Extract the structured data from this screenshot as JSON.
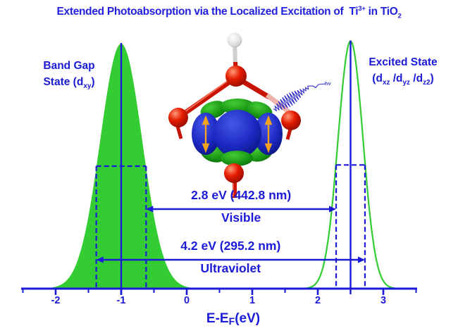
{
  "title": {
    "pre": "Extended Photoabsorption via the Localized Excitation of  Ti",
    "sup": "3+",
    "mid": " in TiO",
    "sub": "2"
  },
  "left_peak_label": {
    "line1": "Band Gap",
    "line2_pre": "State (d",
    "line2_sub": "xy",
    "line2_post": ")"
  },
  "right_peak_label": {
    "line1": "Excited State",
    "p1": "(d",
    "s1": "xz",
    "p2": " /d",
    "s2": "yz",
    "p3": " /d",
    "s3": "z2",
    "p4": ")"
  },
  "annotations": {
    "visible": {
      "value": "2.8 eV (442.8 nm)",
      "band": "Visible"
    },
    "ultraviolet": {
      "value": "4.2 eV (295.2 nm)",
      "band": "Ultraviolet"
    }
  },
  "axis": {
    "label_pre": "E-E",
    "label_sub": "F",
    "label_post": "(eV)",
    "ticks": [
      "-2",
      "-1",
      "0",
      "1",
      "2",
      "3"
    ]
  },
  "photon_label": "hν",
  "colors": {
    "accent_blue": "#1a1ad8",
    "title_blue": "#2121df",
    "green": "#33cc33",
    "atom_red": "#e01800",
    "orbital_blue": "#1a28c0",
    "orbital_green": "#189614",
    "spin_orange": "#f2a21c"
  },
  "chart_data": {
    "type": "area",
    "title": "Extended Photoabsorption via the Localized Excitation of Ti3+ in TiO2",
    "xlabel": "E-EF (eV)",
    "ylabel": "",
    "x_range": [
      -2.5,
      3.5
    ],
    "x_ticks": [
      -2,
      -1,
      0,
      1,
      2,
      3
    ],
    "grid": false,
    "series": [
      {
        "name": "Band Gap State (dxy)",
        "shape": "gaussian",
        "center": -1.0,
        "sigma": 0.32,
        "peak_height": 1.0,
        "style": "filled",
        "color": "#33cc33",
        "fwhm_edges": [
          -1.38,
          -0.62
        ]
      },
      {
        "name": "Excited State (dxz/dyz/dz2)",
        "shape": "gaussian",
        "center": 2.5,
        "sigma": 0.19,
        "peak_height": 1.01,
        "style": "outline",
        "color": "#33cc33",
        "fwhm_edges": [
          2.28,
          2.72
        ]
      }
    ],
    "transitions": [
      {
        "energy_eV": 2.8,
        "wavelength_nm": 442.8,
        "band": "Visible",
        "from_x": -0.62,
        "to_x": 2.28
      },
      {
        "energy_eV": 4.2,
        "wavelength_nm": 295.2,
        "band": "Ultraviolet",
        "from_x": -1.38,
        "to_x": 2.72
      }
    ]
  }
}
